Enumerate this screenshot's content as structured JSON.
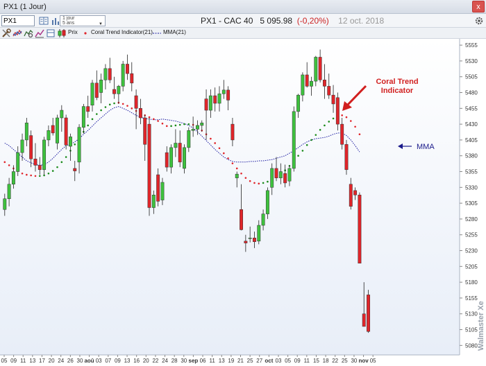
{
  "window": {
    "title": "PX1 (1 Jour)",
    "close_label": "x"
  },
  "toolbar": {
    "symbol_value": "PX1",
    "period_line1": "1 jour",
    "period_line2": "5 ans",
    "icons": [
      "book-icon",
      "bars-icon",
      "gear-icon",
      "tools-icon",
      "indicators-icon",
      "settings-icon",
      "drawing-icon"
    ]
  },
  "header": {
    "name": "PX1 - CAC 40",
    "price": "5 095.98",
    "change": "(-0,20%)",
    "date": "12 oct. 2018"
  },
  "legend": {
    "prix": "Prix",
    "coral": "Coral Trend Indicator(21)",
    "mma": "MMA(21)"
  },
  "colors": {
    "up": "#3ec13e",
    "down": "#e0252a",
    "mma": "#1a1aa0",
    "coral_up": "#1a8a1a",
    "coral_down": "#e0252a",
    "annotation_red": "#d11f1f",
    "annotation_navy": "#1a1a8a"
  },
  "chart_data": {
    "type": "candlestick",
    "ylim": [
      5065,
      5565
    ],
    "y_ticks": [
      5080,
      5105,
      5130,
      5155,
      5180,
      5205,
      5230,
      5255,
      5280,
      5305,
      5330,
      5355,
      5380,
      5405,
      5430,
      5455,
      5480,
      5505,
      5530,
      5555
    ],
    "x_labels": [
      "05",
      "09",
      "11",
      "13",
      "17",
      "20",
      "24",
      "26",
      "30",
      "aoû",
      "03",
      "07",
      "09",
      "13",
      "16",
      "20",
      "22",
      "24",
      "28",
      "30",
      "sep",
      "06",
      "11",
      "13",
      "19",
      "21",
      "25",
      "27",
      "oct",
      "03",
      "05",
      "09",
      "11",
      "15",
      "18",
      "22",
      "25",
      "30",
      "nov",
      "05"
    ],
    "grid": false,
    "candles": [
      {
        "o": 5295,
        "h": 5320,
        "l": 5285,
        "c": 5312
      },
      {
        "o": 5312,
        "h": 5345,
        "l": 5300,
        "c": 5335
      },
      {
        "o": 5335,
        "h": 5365,
        "l": 5328,
        "c": 5355
      },
      {
        "o": 5355,
        "h": 5395,
        "l": 5348,
        "c": 5385
      },
      {
        "o": 5385,
        "h": 5415,
        "l": 5372,
        "c": 5405
      },
      {
        "o": 5405,
        "h": 5440,
        "l": 5395,
        "c": 5432
      },
      {
        "o": 5412,
        "h": 5420,
        "l": 5362,
        "c": 5375
      },
      {
        "o": 5375,
        "h": 5400,
        "l": 5355,
        "c": 5365
      },
      {
        "o": 5365,
        "h": 5378,
        "l": 5350,
        "c": 5358
      },
      {
        "o": 5358,
        "h": 5410,
        "l": 5350,
        "c": 5405
      },
      {
        "o": 5405,
        "h": 5428,
        "l": 5395,
        "c": 5420
      },
      {
        "o": 5428,
        "h": 5440,
        "l": 5412,
        "c": 5416
      },
      {
        "o": 5400,
        "h": 5445,
        "l": 5390,
        "c": 5440
      },
      {
        "o": 5440,
        "h": 5460,
        "l": 5418,
        "c": 5452
      },
      {
        "o": 5440,
        "h": 5445,
        "l": 5390,
        "c": 5397
      },
      {
        "o": 5395,
        "h": 5415,
        "l": 5372,
        "c": 5410
      },
      {
        "o": 5360,
        "h": 5372,
        "l": 5340,
        "c": 5356
      },
      {
        "o": 5370,
        "h": 5430,
        "l": 5352,
        "c": 5425
      },
      {
        "o": 5425,
        "h": 5462,
        "l": 5415,
        "c": 5458
      },
      {
        "o": 5458,
        "h": 5475,
        "l": 5440,
        "c": 5450
      },
      {
        "o": 5460,
        "h": 5500,
        "l": 5450,
        "c": 5495
      },
      {
        "o": 5495,
        "h": 5515,
        "l": 5468,
        "c": 5472
      },
      {
        "o": 5480,
        "h": 5510,
        "l": 5463,
        "c": 5500
      },
      {
        "o": 5500,
        "h": 5525,
        "l": 5485,
        "c": 5518
      },
      {
        "o": 5518,
        "h": 5535,
        "l": 5495,
        "c": 5500
      },
      {
        "o": 5485,
        "h": 5505,
        "l": 5470,
        "c": 5478
      },
      {
        "o": 5478,
        "h": 5492,
        "l": 5462,
        "c": 5490
      },
      {
        "o": 5490,
        "h": 5530,
        "l": 5482,
        "c": 5525
      },
      {
        "o": 5525,
        "h": 5540,
        "l": 5500,
        "c": 5510
      },
      {
        "o": 5510,
        "h": 5528,
        "l": 5482,
        "c": 5495
      },
      {
        "o": 5475,
        "h": 5485,
        "l": 5422,
        "c": 5455
      },
      {
        "o": 5455,
        "h": 5470,
        "l": 5430,
        "c": 5440
      },
      {
        "o": 5440,
        "h": 5445,
        "l": 5372,
        "c": 5398
      },
      {
        "o": 5430,
        "h": 5440,
        "l": 5285,
        "c": 5298
      },
      {
        "o": 5298,
        "h": 5325,
        "l": 5288,
        "c": 5318
      },
      {
        "o": 5350,
        "h": 5360,
        "l": 5300,
        "c": 5308
      },
      {
        "o": 5310,
        "h": 5345,
        "l": 5302,
        "c": 5338
      },
      {
        "o": 5385,
        "h": 5395,
        "l": 5355,
        "c": 5362
      },
      {
        "o": 5362,
        "h": 5398,
        "l": 5352,
        "c": 5393
      },
      {
        "o": 5393,
        "h": 5422,
        "l": 5378,
        "c": 5400
      },
      {
        "o": 5400,
        "h": 5420,
        "l": 5362,
        "c": 5370
      },
      {
        "o": 5360,
        "h": 5398,
        "l": 5352,
        "c": 5393
      },
      {
        "o": 5393,
        "h": 5425,
        "l": 5386,
        "c": 5420
      },
      {
        "o": 5420,
        "h": 5442,
        "l": 5410,
        "c": 5422
      },
      {
        "o": 5422,
        "h": 5436,
        "l": 5413,
        "c": 5428
      },
      {
        "o": 5428,
        "h": 5436,
        "l": 5418,
        "c": 5432
      },
      {
        "o": 5470,
        "h": 5485,
        "l": 5405,
        "c": 5452
      },
      {
        "o": 5452,
        "h": 5485,
        "l": 5440,
        "c": 5475
      },
      {
        "o": 5475,
        "h": 5488,
        "l": 5450,
        "c": 5463
      },
      {
        "o": 5463,
        "h": 5490,
        "l": 5450,
        "c": 5478
      },
      {
        "o": 5478,
        "h": 5500,
        "l": 5470,
        "c": 5484
      },
      {
        "o": 5484,
        "h": 5490,
        "l": 5452,
        "c": 5468
      },
      {
        "o": 5430,
        "h": 5440,
        "l": 5395,
        "c": 5405
      },
      {
        "o": 5345,
        "h": 5355,
        "l": 5330,
        "c": 5351
      },
      {
        "o": 5295,
        "h": 5335,
        "l": 5262,
        "c": 5263
      },
      {
        "o": 5245,
        "h": 5255,
        "l": 5228,
        "c": 5242
      },
      {
        "o": 5250,
        "h": 5268,
        "l": 5243,
        "c": 5250
      },
      {
        "o": 5250,
        "h": 5260,
        "l": 5234,
        "c": 5244
      },
      {
        "o": 5245,
        "h": 5278,
        "l": 5240,
        "c": 5270
      },
      {
        "o": 5270,
        "h": 5295,
        "l": 5262,
        "c": 5288
      },
      {
        "o": 5288,
        "h": 5330,
        "l": 5280,
        "c": 5325
      },
      {
        "o": 5330,
        "h": 5368,
        "l": 5318,
        "c": 5360
      },
      {
        "o": 5360,
        "h": 5378,
        "l": 5340,
        "c": 5345
      },
      {
        "o": 5345,
        "h": 5368,
        "l": 5335,
        "c": 5355
      },
      {
        "o": 5352,
        "h": 5366,
        "l": 5330,
        "c": 5337
      },
      {
        "o": 5340,
        "h": 5365,
        "l": 5332,
        "c": 5360
      },
      {
        "o": 5360,
        "h": 5458,
        "l": 5355,
        "c": 5450
      },
      {
        "o": 5450,
        "h": 5478,
        "l": 5440,
        "c": 5476
      },
      {
        "o": 5476,
        "h": 5512,
        "l": 5466,
        "c": 5508
      },
      {
        "o": 5508,
        "h": 5528,
        "l": 5488,
        "c": 5490
      },
      {
        "o": 5490,
        "h": 5505,
        "l": 5475,
        "c": 5498
      },
      {
        "o": 5498,
        "h": 5538,
        "l": 5490,
        "c": 5536
      },
      {
        "o": 5536,
        "h": 5548,
        "l": 5496,
        "c": 5500
      },
      {
        "o": 5500,
        "h": 5525,
        "l": 5470,
        "c": 5490
      },
      {
        "o": 5490,
        "h": 5510,
        "l": 5470,
        "c": 5476
      },
      {
        "o": 5476,
        "h": 5492,
        "l": 5448,
        "c": 5462
      },
      {
        "o": 5472,
        "h": 5480,
        "l": 5420,
        "c": 5430
      },
      {
        "o": 5430,
        "h": 5440,
        "l": 5390,
        "c": 5398
      },
      {
        "o": 5398,
        "h": 5405,
        "l": 5350,
        "c": 5358
      },
      {
        "o": 5335,
        "h": 5345,
        "l": 5295,
        "c": 5300
      },
      {
        "o": 5325,
        "h": 5330,
        "l": 5310,
        "c": 5318
      },
      {
        "o": 5318,
        "h": 5322,
        "l": 5210,
        "c": 5210
      },
      {
        "o": 5130,
        "h": 5180,
        "l": 5110,
        "c": 5110
      },
      {
        "o": 5160,
        "h": 5168,
        "l": 5100,
        "c": 5102
      }
    ],
    "mma": [
      5400,
      5396,
      5390,
      5384,
      5378,
      5372,
      5369,
      5366,
      5365,
      5366,
      5370,
      5376,
      5383,
      5390,
      5396,
      5398,
      5402,
      5407,
      5414,
      5420,
      5427,
      5434,
      5440,
      5446,
      5452,
      5456,
      5458,
      5455,
      5452,
      5448,
      5444,
      5441,
      5439,
      5438,
      5437,
      5437,
      5438,
      5437,
      5436,
      5435,
      5433,
      5431,
      5428,
      5424,
      5418,
      5411,
      5404,
      5397,
      5390,
      5384,
      5378,
      5374,
      5371,
      5370,
      5370,
      5370,
      5371,
      5371,
      5372,
      5372,
      5373,
      5374,
      5376,
      5378,
      5380,
      5384,
      5388,
      5393,
      5398,
      5402,
      5405,
      5407,
      5408,
      5409,
      5411,
      5414,
      5416,
      5416,
      5412,
      5405,
      5396,
      5386
    ],
    "coral": [
      {
        "v": 5370,
        "t": "down"
      },
      {
        "v": 5365,
        "t": "down"
      },
      {
        "v": 5360,
        "t": "down"
      },
      {
        "v": 5356,
        "t": "down"
      },
      {
        "v": 5352,
        "t": "down"
      },
      {
        "v": 5350,
        "t": "down"
      },
      {
        "v": 5349,
        "t": "down"
      },
      {
        "v": 5348,
        "t": "down"
      },
      {
        "v": 5348,
        "t": "up"
      },
      {
        "v": 5349,
        "t": "up"
      },
      {
        "v": 5352,
        "t": "up"
      },
      {
        "v": 5356,
        "t": "up"
      },
      {
        "v": 5362,
        "t": "up"
      },
      {
        "v": 5370,
        "t": "up"
      },
      {
        "v": 5378,
        "t": "up"
      },
      {
        "v": 5388,
        "t": "up"
      },
      {
        "v": 5398,
        "t": "up"
      },
      {
        "v": 5408,
        "t": "up"
      },
      {
        "v": 5418,
        "t": "up"
      },
      {
        "v": 5428,
        "t": "up"
      },
      {
        "v": 5438,
        "t": "up"
      },
      {
        "v": 5446,
        "t": "up"
      },
      {
        "v": 5452,
        "t": "up"
      },
      {
        "v": 5457,
        "t": "up"
      },
      {
        "v": 5461,
        "t": "up"
      },
      {
        "v": 5463,
        "t": "up"
      },
      {
        "v": 5464,
        "t": "down"
      },
      {
        "v": 5462,
        "t": "down"
      },
      {
        "v": 5459,
        "t": "down"
      },
      {
        "v": 5455,
        "t": "down"
      },
      {
        "v": 5451,
        "t": "down"
      },
      {
        "v": 5447,
        "t": "down"
      },
      {
        "v": 5444,
        "t": "down"
      },
      {
        "v": 5441,
        "t": "down"
      },
      {
        "v": 5438,
        "t": "down"
      },
      {
        "v": 5435,
        "t": "down"
      },
      {
        "v": 5431,
        "t": "down"
      },
      {
        "v": 5427,
        "t": "down"
      },
      {
        "v": 5427,
        "t": "up"
      },
      {
        "v": 5428,
        "t": "up"
      },
      {
        "v": 5429,
        "t": "up"
      },
      {
        "v": 5430,
        "t": "up"
      },
      {
        "v": 5430,
        "t": "up"
      },
      {
        "v": 5429,
        "t": "down"
      },
      {
        "v": 5425,
        "t": "down"
      },
      {
        "v": 5420,
        "t": "down"
      },
      {
        "v": 5414,
        "t": "down"
      },
      {
        "v": 5407,
        "t": "down"
      },
      {
        "v": 5400,
        "t": "down"
      },
      {
        "v": 5392,
        "t": "down"
      },
      {
        "v": 5384,
        "t": "down"
      },
      {
        "v": 5376,
        "t": "down"
      },
      {
        "v": 5368,
        "t": "down"
      },
      {
        "v": 5360,
        "t": "down"
      },
      {
        "v": 5352,
        "t": "down"
      },
      {
        "v": 5345,
        "t": "down"
      },
      {
        "v": 5340,
        "t": "down"
      },
      {
        "v": 5337,
        "t": "down"
      },
      {
        "v": 5336,
        "t": "down"
      },
      {
        "v": 5337,
        "t": "up"
      },
      {
        "v": 5339,
        "t": "up"
      },
      {
        "v": 5342,
        "t": "up"
      },
      {
        "v": 5346,
        "t": "up"
      },
      {
        "v": 5351,
        "t": "up"
      },
      {
        "v": 5357,
        "t": "up"
      },
      {
        "v": 5364,
        "t": "up"
      },
      {
        "v": 5372,
        "t": "up"
      },
      {
        "v": 5380,
        "t": "up"
      },
      {
        "v": 5388,
        "t": "up"
      },
      {
        "v": 5397,
        "t": "up"
      },
      {
        "v": 5405,
        "t": "up"
      },
      {
        "v": 5413,
        "t": "up"
      },
      {
        "v": 5421,
        "t": "up"
      },
      {
        "v": 5428,
        "t": "up"
      },
      {
        "v": 5434,
        "t": "up"
      },
      {
        "v": 5439,
        "t": "up"
      },
      {
        "v": 5443,
        "t": "up"
      },
      {
        "v": 5444,
        "t": "down"
      },
      {
        "v": 5441,
        "t": "down"
      },
      {
        "v": 5435,
        "t": "down"
      },
      {
        "v": 5426,
        "t": "down"
      },
      {
        "v": 5414,
        "t": "down"
      }
    ],
    "annotations": [
      {
        "text_line1": "Coral Trend",
        "text_line2": "Indicator",
        "color": "red"
      },
      {
        "text": "MMA",
        "color": "navy"
      }
    ],
    "watermark": "Walmaster Xe"
  }
}
